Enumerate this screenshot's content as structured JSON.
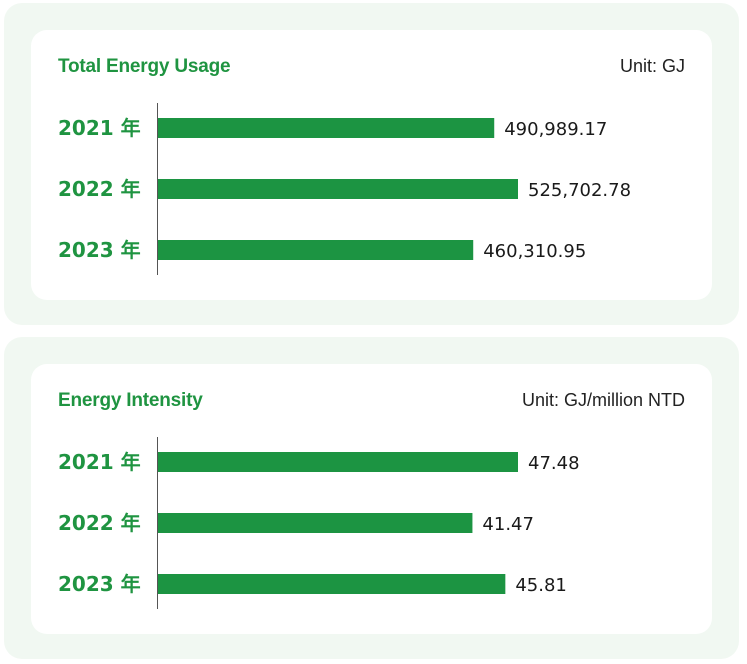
{
  "chart_data": [
    {
      "type": "bar",
      "orientation": "horizontal",
      "title": "Total Energy Usage",
      "unit": "Unit: GJ",
      "categories": [
        "2021 年",
        "2022 年",
        "2023 年"
      ],
      "values": [
        490989.17,
        525702.78,
        460310.95
      ],
      "value_labels": [
        "490,989.17",
        "525,702.78",
        "460,310.95"
      ],
      "xlim": [
        0,
        525702.78
      ],
      "bar_color": "#1c9442",
      "title_color": "#1f9441"
    },
    {
      "type": "bar",
      "orientation": "horizontal",
      "title": "Energy Intensity",
      "unit": "Unit: GJ/million NTD",
      "categories": [
        "2021 年",
        "2022 年",
        "2023 年"
      ],
      "values": [
        47.48,
        41.47,
        45.81
      ],
      "value_labels": [
        "47.48",
        "41.47",
        "45.81"
      ],
      "xlim": [
        0,
        47.48
      ],
      "bar_color": "#1c9442",
      "title_color": "#1f9441"
    }
  ]
}
